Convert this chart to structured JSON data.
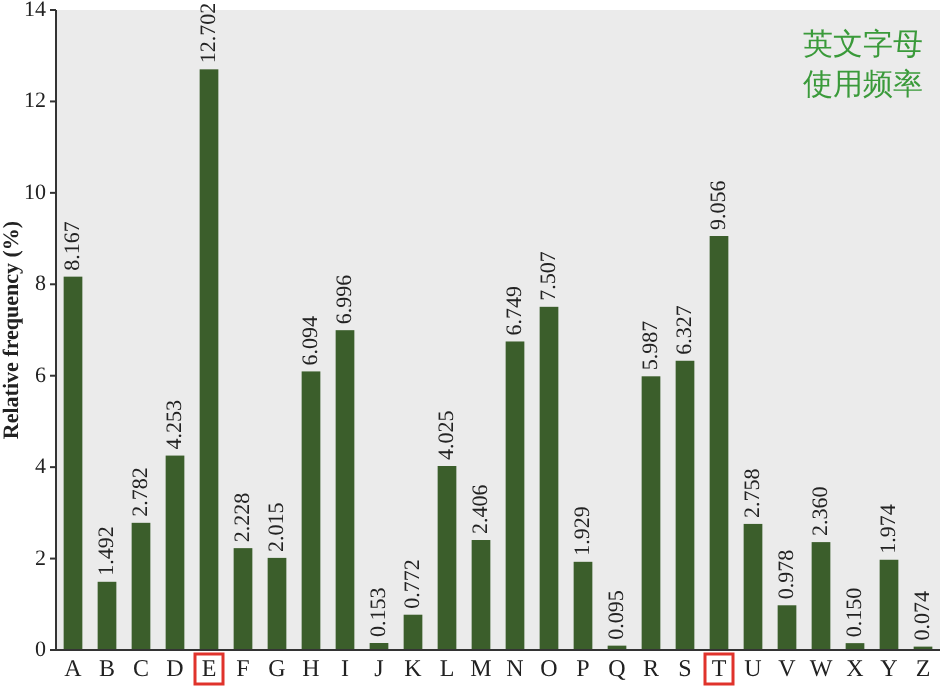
{
  "chart_data": {
    "type": "bar",
    "title": "英文字母使用频率",
    "ylabel": "Relative frequency (%)",
    "categories": [
      "A",
      "B",
      "C",
      "D",
      "E",
      "F",
      "G",
      "H",
      "I",
      "J",
      "K",
      "L",
      "M",
      "N",
      "O",
      "P",
      "Q",
      "R",
      "S",
      "T",
      "U",
      "V",
      "W",
      "X",
      "Y",
      "Z"
    ],
    "values": [
      8.167,
      1.492,
      2.782,
      4.253,
      12.702,
      2.228,
      2.015,
      6.094,
      6.996,
      0.153,
      0.772,
      4.025,
      2.406,
      6.749,
      7.507,
      1.929,
      0.095,
      5.987,
      6.327,
      9.056,
      2.758,
      0.978,
      2.36,
      0.15,
      1.974,
      0.074
    ],
    "value_labels": [
      "8.167",
      "1.492",
      "2.782",
      "4.253",
      "12.702",
      "2.228",
      "2.015",
      "6.094",
      "6.996",
      "0.153",
      "0.772",
      "4.025",
      "2.406",
      "6.749",
      "7.507",
      "1.929",
      "0.095",
      "5.987",
      "6.327",
      "9.056",
      "2.758",
      "0.978",
      "2.360",
      "0.150",
      "1.974",
      "0.074"
    ],
    "color": "#3b5e2b",
    "ylim": [
      0,
      14
    ],
    "yticks": [
      0,
      2,
      4,
      6,
      8,
      10,
      12,
      14
    ],
    "grid": false
  }
}
